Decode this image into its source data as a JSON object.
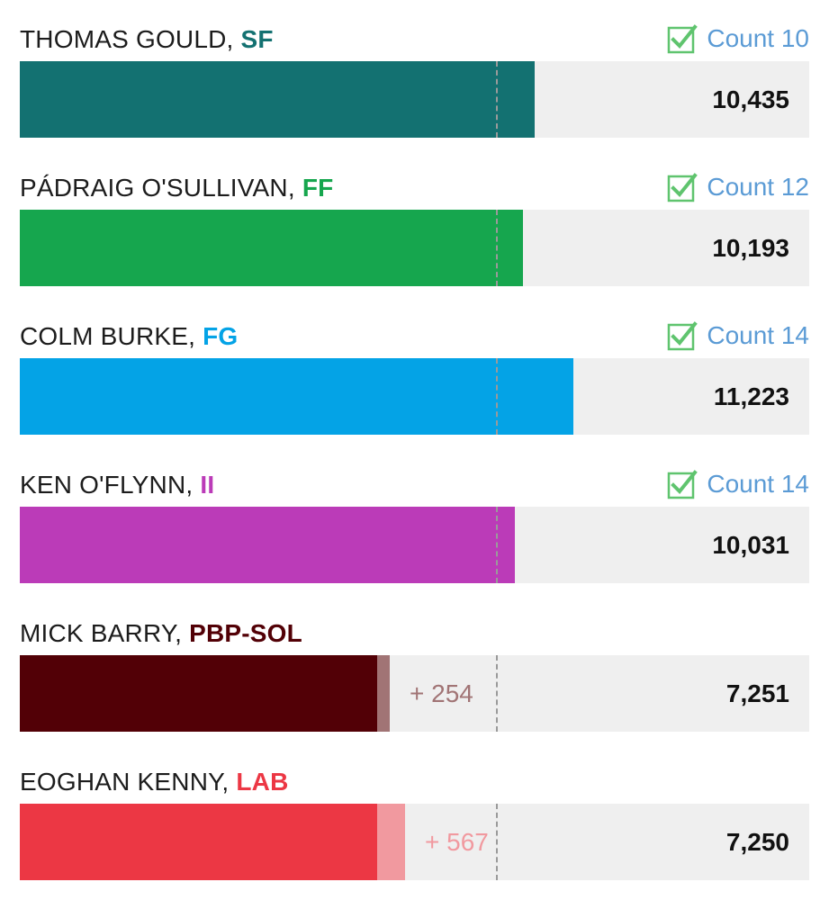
{
  "chart_data": {
    "type": "bar",
    "orientation": "horizontal",
    "title": "",
    "xlabel": "",
    "ylabel": "",
    "xlim": [
      0,
      16000
    ],
    "quota": 9650,
    "grid": false,
    "legend": "none",
    "candidates": [
      {
        "name": "THOMAS GOULD",
        "party": "SF",
        "party_color": "#137171",
        "votes": 10435,
        "votes_label": "10,435",
        "elected": true,
        "count_label": "Count 10",
        "transfer": null,
        "transfer_label": ""
      },
      {
        "name": "PÁDRAIG O'SULLIVAN",
        "party": "FF",
        "party_color": "#16a64e",
        "votes": 10193,
        "votes_label": "10,193",
        "elected": true,
        "count_label": "Count 12",
        "transfer": null,
        "transfer_label": ""
      },
      {
        "name": "COLM BURKE",
        "party": "FG",
        "party_color": "#04a3e6",
        "votes": 11223,
        "votes_label": "11,223",
        "elected": true,
        "count_label": "Count 14",
        "transfer": null,
        "transfer_label": ""
      },
      {
        "name": "KEN O'FLYNN",
        "party": "II",
        "party_color": "#bb3bb8",
        "votes": 10031,
        "votes_label": "10,031",
        "elected": true,
        "count_label": "Count 14",
        "transfer": null,
        "transfer_label": ""
      },
      {
        "name": "MICK BARRY",
        "party": "PBP-SOL",
        "party_color": "#520006",
        "votes": 7251,
        "votes_label": "7,251",
        "elected": false,
        "count_label": "",
        "transfer": 254,
        "transfer_label": "+ 254",
        "transfer_color": "#a17475"
      },
      {
        "name": "EOGHAN KENNY",
        "party": "LAB",
        "party_color": "#ec3744",
        "votes": 7250,
        "votes_label": "7,250",
        "elected": false,
        "count_label": "",
        "transfer": 567,
        "transfer_label": "+ 567",
        "transfer_color": "#f1999f"
      }
    ]
  },
  "colors": {
    "track": "#efefef",
    "elected_check": "#5fc46e",
    "count_label": "#5b9bd5",
    "quota_line": "#9a9a9a"
  }
}
